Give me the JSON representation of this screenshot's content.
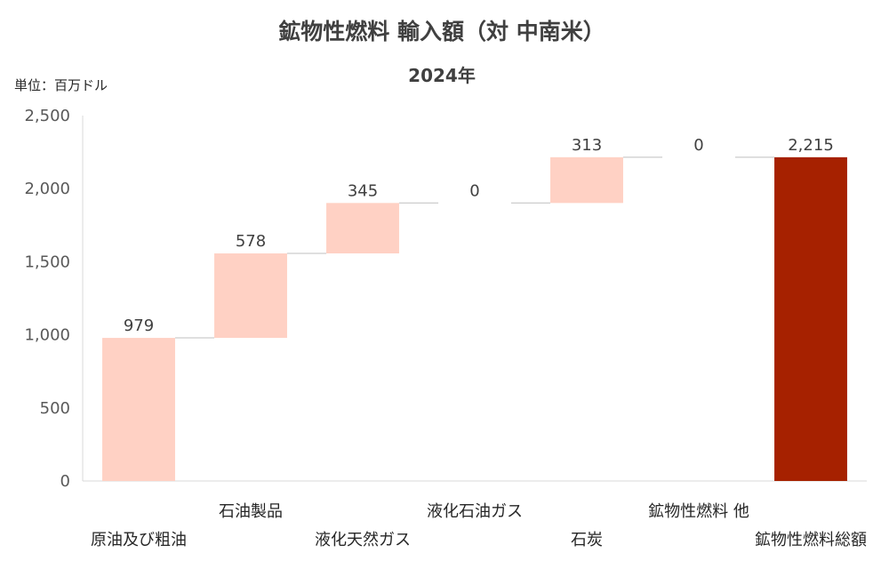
{
  "chart_data": {
    "type": "waterfall",
    "title": "鉱物性燃料 輸入額（対 中南米）",
    "subtitle": "2024年",
    "unit_label": "単位：百万ドル",
    "categories": [
      "原油及び粗油",
      "石油製品",
      "液化天然ガス",
      "液化石油ガス",
      "石炭",
      "鉱物性燃料 他",
      "鉱物性燃料総額"
    ],
    "values": [
      979,
      578,
      345,
      0,
      313,
      0,
      2215
    ],
    "data_labels": [
      "979",
      "578",
      "345",
      "0",
      "313",
      "0",
      "2,215"
    ],
    "total_index": 6,
    "ylim": [
      0,
      2500
    ],
    "y_ticks": [
      0,
      500,
      1000,
      1500,
      2000,
      2500
    ],
    "y_tick_labels": [
      "0",
      "500",
      "1,000",
      "1,500",
      "2,000",
      "2,500"
    ],
    "grid": false,
    "legend": "none",
    "colors": {
      "increment": "#FFD1C4",
      "total": "#A62100",
      "connector": "#BFBFBF"
    }
  }
}
